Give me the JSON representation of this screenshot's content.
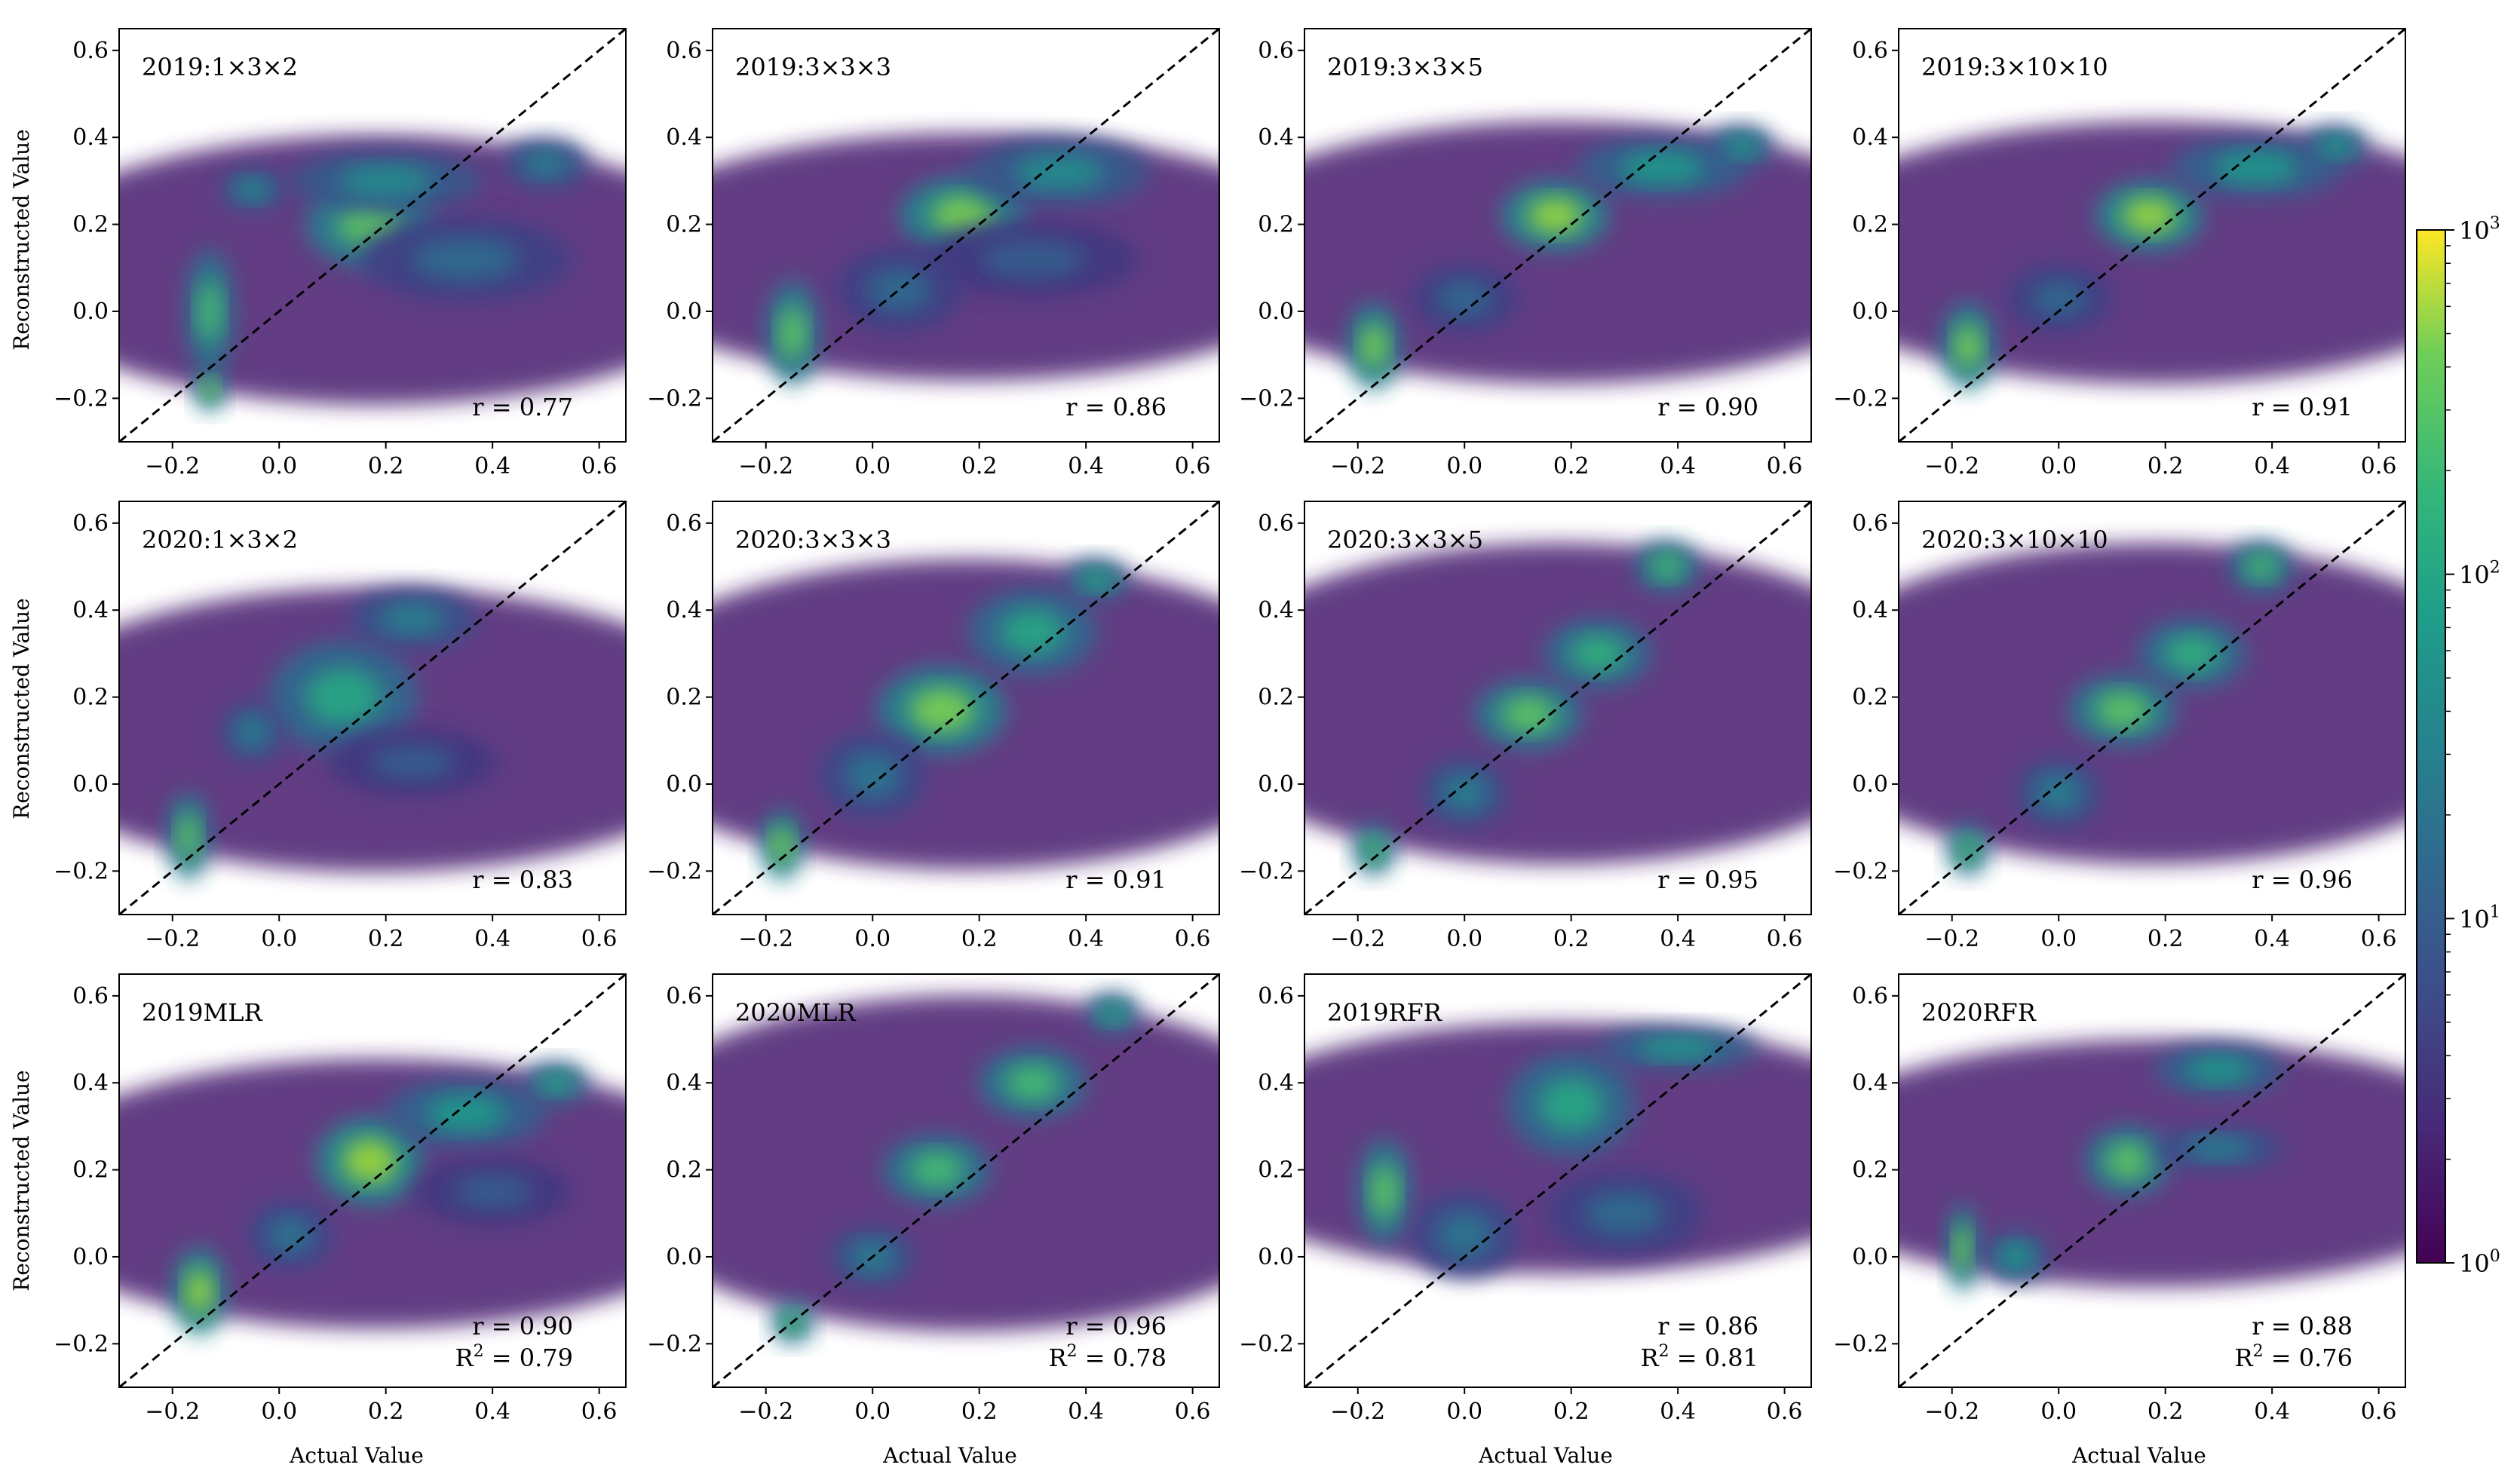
{
  "figure": {
    "ylabel": "Reconstructed Value",
    "xlabel": "Actual Value",
    "colorbar": {
      "scale": "log",
      "range": [
        1,
        1000
      ],
      "ticks": [
        {
          "base": "10",
          "exp": "0",
          "value": 1
        },
        {
          "base": "10",
          "exp": "1",
          "value": 10
        },
        {
          "base": "10",
          "exp": "2",
          "value": 100
        },
        {
          "base": "10",
          "exp": "3",
          "value": 1000
        }
      ],
      "colormap": "viridis"
    }
  },
  "chart_data": [
    {
      "type": "heatmap",
      "title": "2019:1×3×2",
      "r_label": "r = 0.77",
      "r": 0.77,
      "xlim": [
        -0.3,
        0.65
      ],
      "ylim": [
        -0.3,
        0.65
      ],
      "blobs": [
        {
          "x": -0.13,
          "y": 0.0,
          "w": 0.045,
          "h": 0.14,
          "v": 0.7
        },
        {
          "x": -0.13,
          "y": -0.18,
          "w": 0.03,
          "h": 0.05,
          "v": 0.8
        },
        {
          "x": 0.17,
          "y": 0.2,
          "w": 0.12,
          "h": 0.1,
          "v": 0.75
        },
        {
          "x": 0.2,
          "y": 0.3,
          "w": 0.18,
          "h": 0.07,
          "v": 0.5
        },
        {
          "x": 0.35,
          "y": 0.12,
          "w": 0.2,
          "h": 0.1,
          "v": 0.35
        },
        {
          "x": 0.5,
          "y": 0.34,
          "w": 0.08,
          "h": 0.06,
          "v": 0.45
        },
        {
          "x": -0.05,
          "y": 0.28,
          "w": 0.06,
          "h": 0.05,
          "v": 0.5
        }
      ]
    },
    {
      "type": "heatmap",
      "title": "2019:3×3×3",
      "r_label": "r = 0.86",
      "r": 0.86,
      "xlim": [
        -0.3,
        0.65
      ],
      "ylim": [
        -0.3,
        0.65
      ],
      "blobs": [
        {
          "x": -0.15,
          "y": -0.05,
          "w": 0.05,
          "h": 0.12,
          "v": 0.75
        },
        {
          "x": 0.17,
          "y": 0.22,
          "w": 0.12,
          "h": 0.09,
          "v": 0.8
        },
        {
          "x": 0.35,
          "y": 0.32,
          "w": 0.17,
          "h": 0.08,
          "v": 0.5
        },
        {
          "x": 0.3,
          "y": 0.12,
          "w": 0.2,
          "h": 0.09,
          "v": 0.3
        },
        {
          "x": 0.05,
          "y": 0.05,
          "w": 0.12,
          "h": 0.1,
          "v": 0.35
        }
      ]
    },
    {
      "type": "heatmap",
      "title": "2019:3×3×5",
      "r_label": "r = 0.90",
      "r": 0.9,
      "xlim": [
        -0.3,
        0.65
      ],
      "ylim": [
        -0.3,
        0.65
      ],
      "blobs": [
        {
          "x": -0.17,
          "y": -0.08,
          "w": 0.05,
          "h": 0.1,
          "v": 0.8
        },
        {
          "x": 0.17,
          "y": 0.22,
          "w": 0.1,
          "h": 0.08,
          "v": 0.85
        },
        {
          "x": 0.37,
          "y": 0.33,
          "w": 0.16,
          "h": 0.07,
          "v": 0.55
        },
        {
          "x": 0.52,
          "y": 0.38,
          "w": 0.06,
          "h": 0.05,
          "v": 0.55
        },
        {
          "x": 0.0,
          "y": 0.03,
          "w": 0.1,
          "h": 0.08,
          "v": 0.35
        }
      ]
    },
    {
      "type": "heatmap",
      "title": "2019:3×10×10",
      "r_label": "r = 0.91",
      "r": 0.91,
      "xlim": [
        -0.3,
        0.65
      ],
      "ylim": [
        -0.3,
        0.65
      ],
      "blobs": [
        {
          "x": -0.17,
          "y": -0.08,
          "w": 0.05,
          "h": 0.1,
          "v": 0.8
        },
        {
          "x": 0.17,
          "y": 0.22,
          "w": 0.1,
          "h": 0.08,
          "v": 0.85
        },
        {
          "x": 0.37,
          "y": 0.33,
          "w": 0.16,
          "h": 0.07,
          "v": 0.55
        },
        {
          "x": 0.52,
          "y": 0.38,
          "w": 0.06,
          "h": 0.05,
          "v": 0.55
        },
        {
          "x": 0.0,
          "y": 0.03,
          "w": 0.1,
          "h": 0.08,
          "v": 0.35
        }
      ]
    },
    {
      "type": "heatmap",
      "title": "2020:1×3×2",
      "r_label": "r = 0.83",
      "r": 0.83,
      "xlim": [
        -0.3,
        0.65
      ],
      "ylim": [
        -0.3,
        0.65
      ],
      "blobs": [
        {
          "x": -0.17,
          "y": -0.12,
          "w": 0.04,
          "h": 0.1,
          "v": 0.75
        },
        {
          "x": 0.12,
          "y": 0.2,
          "w": 0.14,
          "h": 0.13,
          "v": 0.6
        },
        {
          "x": 0.25,
          "y": 0.38,
          "w": 0.12,
          "h": 0.07,
          "v": 0.45
        },
        {
          "x": 0.25,
          "y": 0.05,
          "w": 0.16,
          "h": 0.08,
          "v": 0.3
        },
        {
          "x": -0.05,
          "y": 0.12,
          "w": 0.06,
          "h": 0.07,
          "v": 0.45
        }
      ]
    },
    {
      "type": "heatmap",
      "title": "2020:3×3×3",
      "r_label": "r = 0.91",
      "r": 0.91,
      "xlim": [
        -0.3,
        0.65
      ],
      "ylim": [
        -0.3,
        0.65
      ],
      "blobs": [
        {
          "x": -0.17,
          "y": -0.14,
          "w": 0.04,
          "h": 0.08,
          "v": 0.8
        },
        {
          "x": 0.13,
          "y": 0.17,
          "w": 0.12,
          "h": 0.1,
          "v": 0.8
        },
        {
          "x": 0.3,
          "y": 0.35,
          "w": 0.12,
          "h": 0.1,
          "v": 0.6
        },
        {
          "x": 0.42,
          "y": 0.47,
          "w": 0.06,
          "h": 0.05,
          "v": 0.6
        },
        {
          "x": 0.0,
          "y": 0.02,
          "w": 0.1,
          "h": 0.1,
          "v": 0.4
        }
      ]
    },
    {
      "type": "heatmap",
      "title": "2020:3×3×5",
      "r_label": "r = 0.95",
      "r": 0.95,
      "xlim": [
        -0.3,
        0.65
      ],
      "ylim": [
        -0.3,
        0.65
      ],
      "blobs": [
        {
          "x": -0.17,
          "y": -0.15,
          "w": 0.04,
          "h": 0.06,
          "v": 0.7
        },
        {
          "x": 0.12,
          "y": 0.16,
          "w": 0.1,
          "h": 0.08,
          "v": 0.75
        },
        {
          "x": 0.25,
          "y": 0.3,
          "w": 0.1,
          "h": 0.08,
          "v": 0.65
        },
        {
          "x": 0.38,
          "y": 0.5,
          "w": 0.06,
          "h": 0.06,
          "v": 0.7
        },
        {
          "x": 0.0,
          "y": -0.02,
          "w": 0.08,
          "h": 0.08,
          "v": 0.45
        }
      ]
    },
    {
      "type": "heatmap",
      "title": "2020:3×10×10",
      "r_label": "r = 0.96",
      "r": 0.96,
      "xlim": [
        -0.3,
        0.65
      ],
      "ylim": [
        -0.3,
        0.65
      ],
      "blobs": [
        {
          "x": -0.17,
          "y": -0.15,
          "w": 0.04,
          "h": 0.06,
          "v": 0.7
        },
        {
          "x": 0.12,
          "y": 0.17,
          "w": 0.1,
          "h": 0.08,
          "v": 0.75
        },
        {
          "x": 0.25,
          "y": 0.3,
          "w": 0.1,
          "h": 0.08,
          "v": 0.65
        },
        {
          "x": 0.38,
          "y": 0.5,
          "w": 0.06,
          "h": 0.06,
          "v": 0.7
        },
        {
          "x": 0.0,
          "y": -0.02,
          "w": 0.08,
          "h": 0.08,
          "v": 0.45
        }
      ]
    },
    {
      "type": "heatmap",
      "title": "2019MLR",
      "r_label": "r = 0.90",
      "r2_prefix": "R",
      "r2_exp": "2",
      "r2_suffix": " = 0.79",
      "r": 0.9,
      "r2": 0.79,
      "xlim": [
        -0.3,
        0.65
      ],
      "ylim": [
        -0.3,
        0.65
      ],
      "blobs": [
        {
          "x": -0.15,
          "y": -0.08,
          "w": 0.05,
          "h": 0.1,
          "v": 0.85
        },
        {
          "x": 0.17,
          "y": 0.22,
          "w": 0.1,
          "h": 0.1,
          "v": 0.85
        },
        {
          "x": 0.35,
          "y": 0.33,
          "w": 0.15,
          "h": 0.08,
          "v": 0.55
        },
        {
          "x": 0.52,
          "y": 0.4,
          "w": 0.06,
          "h": 0.05,
          "v": 0.6
        },
        {
          "x": 0.4,
          "y": 0.15,
          "w": 0.15,
          "h": 0.08,
          "v": 0.3
        },
        {
          "x": 0.02,
          "y": 0.05,
          "w": 0.08,
          "h": 0.08,
          "v": 0.4
        }
      ]
    },
    {
      "type": "heatmap",
      "title": "2020MLR",
      "r_label": "r = 0.96",
      "r2_prefix": "R",
      "r2_exp": "2",
      "r2_suffix": " = 0.78",
      "r": 0.96,
      "r2": 0.78,
      "xlim": [
        -0.3,
        0.65
      ],
      "ylim": [
        -0.3,
        0.65
      ],
      "blobs": [
        {
          "x": -0.15,
          "y": -0.15,
          "w": 0.04,
          "h": 0.05,
          "v": 0.7
        },
        {
          "x": 0.12,
          "y": 0.2,
          "w": 0.1,
          "h": 0.08,
          "v": 0.7
        },
        {
          "x": 0.3,
          "y": 0.4,
          "w": 0.1,
          "h": 0.08,
          "v": 0.7
        },
        {
          "x": 0.45,
          "y": 0.56,
          "w": 0.05,
          "h": 0.05,
          "v": 0.6
        },
        {
          "x": 0.0,
          "y": 0.0,
          "w": 0.08,
          "h": 0.07,
          "v": 0.45
        }
      ]
    },
    {
      "type": "heatmap",
      "title": "2019RFR",
      "r_label": "r = 0.86",
      "r2_prefix": "R",
      "r2_exp": "2",
      "r2_suffix": " = 0.81",
      "r": 0.86,
      "r2": 0.81,
      "xlim": [
        -0.3,
        0.65
      ],
      "ylim": [
        -0.3,
        0.65
      ],
      "blobs": [
        {
          "x": -0.15,
          "y": 0.15,
          "w": 0.05,
          "h": 0.12,
          "v": 0.75
        },
        {
          "x": 0.2,
          "y": 0.35,
          "w": 0.12,
          "h": 0.12,
          "v": 0.6
        },
        {
          "x": 0.4,
          "y": 0.48,
          "w": 0.15,
          "h": 0.05,
          "v": 0.55
        },
        {
          "x": 0.3,
          "y": 0.1,
          "w": 0.15,
          "h": 0.1,
          "v": 0.35
        },
        {
          "x": 0.0,
          "y": 0.05,
          "w": 0.1,
          "h": 0.1,
          "v": 0.4
        }
      ]
    },
    {
      "type": "heatmap",
      "title": "2020RFR",
      "r_label": "r = 0.88",
      "r2_prefix": "R",
      "r2_exp": "2",
      "r2_suffix": " = 0.76",
      "r": 0.88,
      "r2": 0.76,
      "xlim": [
        -0.3,
        0.65
      ],
      "ylim": [
        -0.3,
        0.65
      ],
      "blobs": [
        {
          "x": -0.18,
          "y": 0.02,
          "w": 0.03,
          "h": 0.1,
          "v": 0.8
        },
        {
          "x": -0.08,
          "y": 0.0,
          "w": 0.06,
          "h": 0.06,
          "v": 0.55
        },
        {
          "x": 0.13,
          "y": 0.22,
          "w": 0.08,
          "h": 0.08,
          "v": 0.75
        },
        {
          "x": 0.3,
          "y": 0.43,
          "w": 0.12,
          "h": 0.06,
          "v": 0.55
        },
        {
          "x": 0.3,
          "y": 0.25,
          "w": 0.12,
          "h": 0.05,
          "v": 0.45
        }
      ]
    }
  ]
}
